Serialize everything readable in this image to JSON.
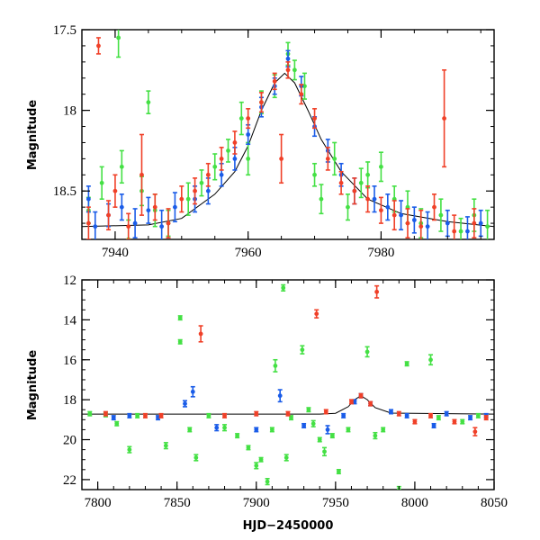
{
  "chart_data": [
    {
      "type": "scatter",
      "xlabel": "",
      "ylabel": "Magnitude",
      "xlim": [
        7935,
        7997
      ],
      "ylim": [
        18.8,
        17.5
      ],
      "y_inverted": true,
      "xticks": [
        7940,
        7960,
        7980
      ],
      "xtick_labels": [
        "7940",
        "7960",
        "7980"
      ],
      "yticks": [
        17.5,
        18,
        18.5
      ],
      "ytick_labels": [
        "17.5",
        "18",
        "18.5"
      ],
      "error_bars": true,
      "colors": {
        "green": "#44e044",
        "blue": "#1a5ce8",
        "red": "#f04028",
        "model": "#000000"
      },
      "model_curve": {
        "x": [
          7935,
          7945,
          7950,
          7955,
          7958,
          7960,
          7962,
          7964,
          7965.5,
          7967,
          7969,
          7971,
          7974,
          7978,
          7983,
          7990,
          7997
        ],
        "y": [
          18.72,
          18.71,
          18.67,
          18.52,
          18.38,
          18.22,
          18.0,
          17.83,
          17.77,
          17.83,
          18.0,
          18.18,
          18.38,
          18.55,
          18.64,
          18.69,
          18.72
        ]
      },
      "series": [
        {
          "color": "green",
          "values": [
            [
              7936,
              18.62,
              0.08
            ],
            [
              7938,
              18.45,
              0.1
            ],
            [
              7940.5,
              17.55,
              0.12
            ],
            [
              7941,
              18.35,
              0.1
            ],
            [
              7942,
              18.8,
              0.12
            ],
            [
              7944,
              18.5,
              0.09
            ],
            [
              7946,
              18.62,
              0.1
            ],
            [
              7948,
              18.7,
              0.08
            ],
            [
              7951,
              18.55,
              0.1
            ],
            [
              7953,
              18.45,
              0.08
            ],
            [
              7955,
              18.35,
              0.08
            ],
            [
              7957,
              18.25,
              0.07
            ],
            [
              7959,
              18.05,
              0.1
            ],
            [
              7960,
              18.3,
              0.1
            ],
            [
              7962,
              17.95,
              0.07
            ],
            [
              7964,
              17.85,
              0.07
            ],
            [
              7967,
              17.75,
              0.06
            ],
            [
              7968.5,
              17.85,
              0.08
            ],
            [
              7970,
              18.4,
              0.07
            ],
            [
              7971,
              18.55,
              0.09
            ],
            [
              7973,
              18.3,
              0.1
            ],
            [
              7975,
              18.6,
              0.08
            ],
            [
              7977,
              18.45,
              0.09
            ],
            [
              7978,
              18.4,
              0.08
            ],
            [
              7980,
              18.35,
              0.09
            ],
            [
              7982,
              18.55,
              0.08
            ],
            [
              7984,
              18.6,
              0.1
            ],
            [
              7986,
              18.7,
              0.09
            ],
            [
              7989,
              18.65,
              0.1
            ],
            [
              7992,
              18.75,
              0.08
            ],
            [
              7994,
              18.65,
              0.1
            ],
            [
              7996,
              18.72,
              0.1
            ],
            [
              7945,
              17.95,
              0.07
            ],
            [
              7966,
              17.65,
              0.07
            ]
          ]
        },
        {
          "color": "blue",
          "values": [
            [
              7936,
              18.55,
              0.08
            ],
            [
              7937,
              18.72,
              0.09
            ],
            [
              7939,
              18.65,
              0.07
            ],
            [
              7941,
              18.6,
              0.08
            ],
            [
              7943,
              18.7,
              0.09
            ],
            [
              7945,
              18.62,
              0.08
            ],
            [
              7947,
              18.72,
              0.1
            ],
            [
              7949,
              18.6,
              0.09
            ],
            [
              7952,
              18.55,
              0.08
            ],
            [
              7954,
              18.5,
              0.08
            ],
            [
              7956,
              18.4,
              0.07
            ],
            [
              7958,
              18.3,
              0.07
            ],
            [
              7960,
              18.15,
              0.06
            ],
            [
              7962,
              17.98,
              0.06
            ],
            [
              7964,
              17.85,
              0.05
            ],
            [
              7966,
              17.68,
              0.05
            ],
            [
              7968,
              17.85,
              0.06
            ],
            [
              7970,
              18.1,
              0.06
            ],
            [
              7972,
              18.25,
              0.07
            ],
            [
              7974,
              18.4,
              0.07
            ],
            [
              7976,
              18.5,
              0.08
            ],
            [
              7979,
              18.55,
              0.08
            ],
            [
              7981,
              18.6,
              0.08
            ],
            [
              7983,
              18.65,
              0.09
            ],
            [
              7985,
              18.68,
              0.08
            ],
            [
              7987,
              18.72,
              0.09
            ],
            [
              7990,
              18.7,
              0.08
            ],
            [
              7993,
              18.75,
              0.09
            ],
            [
              7995,
              18.7,
              0.08
            ]
          ]
        },
        {
          "color": "red",
          "values": [
            [
              7936,
              18.7,
              0.1
            ],
            [
              7937.5,
              17.6,
              0.05
            ],
            [
              7939,
              18.65,
              0.09
            ],
            [
              7940,
              18.5,
              0.1
            ],
            [
              7942,
              18.72,
              0.08
            ],
            [
              7944,
              18.4,
              0.25
            ],
            [
              7946,
              18.6,
              0.08
            ],
            [
              7948,
              18.7,
              0.09
            ],
            [
              7950,
              18.55,
              0.08
            ],
            [
              7952,
              18.5,
              0.08
            ],
            [
              7954,
              18.4,
              0.07
            ],
            [
              7956,
              18.3,
              0.07
            ],
            [
              7958,
              18.2,
              0.07
            ],
            [
              7960,
              18.05,
              0.06
            ],
            [
              7962,
              17.95,
              0.06
            ],
            [
              7964,
              17.82,
              0.05
            ],
            [
              7965,
              18.3,
              0.15
            ],
            [
              7966,
              17.75,
              0.05
            ],
            [
              7968,
              17.9,
              0.06
            ],
            [
              7970,
              18.05,
              0.06
            ],
            [
              7972,
              18.3,
              0.07
            ],
            [
              7974,
              18.45,
              0.07
            ],
            [
              7976,
              18.5,
              0.08
            ],
            [
              7978,
              18.55,
              0.08
            ],
            [
              7980,
              18.62,
              0.08
            ],
            [
              7982,
              18.65,
              0.09
            ],
            [
              7984,
              18.7,
              0.09
            ],
            [
              7986,
              18.72,
              0.1
            ],
            [
              7988,
              18.6,
              0.08
            ],
            [
              7989.5,
              18.05,
              0.3
            ],
            [
              7991,
              18.75,
              0.1
            ],
            [
              7994,
              18.7,
              0.09
            ]
          ]
        }
      ]
    },
    {
      "type": "scatter",
      "xlabel": "HJD−2450000",
      "ylabel": "Magnitude",
      "xlim": [
        7790,
        8050
      ],
      "ylim": [
        22.5,
        12
      ],
      "y_inverted": true,
      "xticks": [
        7800,
        7850,
        7900,
        7950,
        8000,
        8050
      ],
      "xtick_labels": [
        "7800",
        "7850",
        "7900",
        "7950",
        "8000",
        "8050"
      ],
      "yticks": [
        12,
        14,
        16,
        18,
        20,
        22
      ],
      "ytick_labels": [
        "12",
        "14",
        "16",
        "18",
        "20",
        "22"
      ],
      "error_bars": true,
      "colors": {
        "green": "#44e044",
        "blue": "#1a5ce8",
        "red": "#f04028",
        "model": "#000000"
      },
      "model_curve": {
        "x": [
          7790,
          7940,
          7950,
          7958,
          7962,
          7966,
          7970,
          7975,
          7985,
          8050
        ],
        "y": [
          18.72,
          18.72,
          18.68,
          18.35,
          18.0,
          17.8,
          18.0,
          18.4,
          18.67,
          18.72
        ]
      },
      "series": [
        {
          "color": "green",
          "values": [
            [
              7795,
              18.7,
              0.1
            ],
            [
              7805,
              18.75,
              0.1
            ],
            [
              7812,
              19.2,
              0.1
            ],
            [
              7820,
              20.5,
              0.15
            ],
            [
              7825,
              18.8,
              0.1
            ],
            [
              7843,
              20.3,
              0.15
            ],
            [
              7852,
              13.9,
              0.1
            ],
            [
              7852,
              15.1,
              0.1
            ],
            [
              7858,
              19.5,
              0.1
            ],
            [
              7862,
              20.9,
              0.15
            ],
            [
              7870,
              18.8,
              0.1
            ],
            [
              7880,
              19.4,
              0.15
            ],
            [
              7888,
              19.8,
              0.1
            ],
            [
              7895,
              20.4,
              0.1
            ],
            [
              7900,
              21.3,
              0.15
            ],
            [
              7903,
              21.0,
              0.1
            ],
            [
              7907,
              22.1,
              0.15
            ],
            [
              7910,
              19.5,
              0.1
            ],
            [
              7912,
              16.3,
              0.3
            ],
            [
              7917,
              12.4,
              0.15
            ],
            [
              7919,
              20.9,
              0.15
            ],
            [
              7922,
              18.9,
              0.1
            ],
            [
              7929,
              15.5,
              0.2
            ],
            [
              7933,
              18.5,
              0.1
            ],
            [
              7936,
              19.2,
              0.15
            ],
            [
              7940,
              20.0,
              0.1
            ],
            [
              7943,
              20.6,
              0.2
            ],
            [
              7948,
              19.8,
              0.1
            ],
            [
              7952,
              21.6,
              0.1
            ],
            [
              7958,
              19.5,
              0.1
            ],
            [
              7970,
              15.6,
              0.25
            ],
            [
              7975,
              19.8,
              0.15
            ],
            [
              7980,
              19.5,
              0.1
            ],
            [
              7990,
              22.5,
              0.15
            ],
            [
              7995,
              16.2,
              0.1
            ],
            [
              8010,
              16.0,
              0.25
            ],
            [
              8015,
              18.9,
              0.1
            ],
            [
              8030,
              19.1,
              0.1
            ],
            [
              8040,
              18.8,
              0.1
            ]
          ]
        },
        {
          "color": "blue",
          "values": [
            [
              7810,
              18.9,
              0.1
            ],
            [
              7820,
              18.8,
              0.1
            ],
            [
              7838,
              18.9,
              0.1
            ],
            [
              7855,
              18.2,
              0.15
            ],
            [
              7860,
              17.6,
              0.25
            ],
            [
              7875,
              19.4,
              0.15
            ],
            [
              7900,
              19.5,
              0.1
            ],
            [
              7915,
              17.8,
              0.3
            ],
            [
              7930,
              19.3,
              0.1
            ],
            [
              7945,
              19.5,
              0.2
            ],
            [
              7955,
              18.8,
              0.1
            ],
            [
              7962,
              18.1,
              0.1
            ],
            [
              7966,
              17.8,
              0.1
            ],
            [
              7972,
              18.2,
              0.1
            ],
            [
              7985,
              18.6,
              0.1
            ],
            [
              7995,
              18.8,
              0.1
            ],
            [
              8012,
              19.3,
              0.1
            ],
            [
              8020,
              18.7,
              0.1
            ],
            [
              8035,
              18.9,
              0.1
            ],
            [
              8045,
              18.8,
              0.1
            ]
          ]
        },
        {
          "color": "red",
          "values": [
            [
              7805,
              18.7,
              0.1
            ],
            [
              7830,
              18.8,
              0.1
            ],
            [
              7840,
              18.8,
              0.1
            ],
            [
              7865,
              14.7,
              0.4
            ],
            [
              7880,
              18.8,
              0.1
            ],
            [
              7900,
              18.7,
              0.1
            ],
            [
              7920,
              18.7,
              0.1
            ],
            [
              7938,
              13.7,
              0.2
            ],
            [
              7944,
              18.6,
              0.1
            ],
            [
              7960,
              18.1,
              0.1
            ],
            [
              7966,
              17.8,
              0.1
            ],
            [
              7972,
              18.2,
              0.1
            ],
            [
              7976,
              12.6,
              0.3
            ],
            [
              7990,
              18.7,
              0.1
            ],
            [
              8000,
              19.1,
              0.1
            ],
            [
              8010,
              18.8,
              0.1
            ],
            [
              8025,
              19.1,
              0.1
            ],
            [
              8038,
              19.6,
              0.2
            ],
            [
              8045,
              18.9,
              0.1
            ]
          ]
        }
      ]
    }
  ]
}
